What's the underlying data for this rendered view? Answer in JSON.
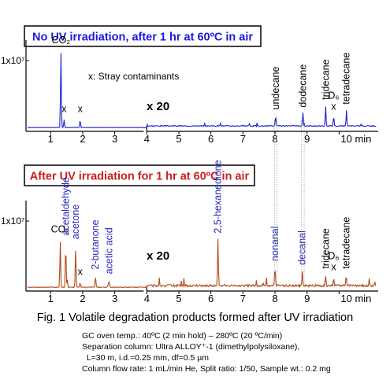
{
  "chart_data": [
    {
      "type": "line",
      "title": "No UV irradiation, after 1 hr at 60ºC in air",
      "title_color": "#1a1adb",
      "line_color": "#1f1fd0",
      "y_tick_label": "1x10⁷",
      "x_ticks": [
        1,
        2,
        3,
        4,
        5,
        6,
        7,
        8,
        9,
        10
      ],
      "x_unit": "min",
      "x_range": [
        0.6,
        10.9
      ],
      "magnification": {
        "label": "x 20",
        "start": 4.0
      },
      "note": "x: Stray contaminants",
      "baseline": 0.03,
      "noise_amplitude": 0.012,
      "peaks": [
        {
          "x": 1.32,
          "y": 1.0,
          "w": 0.012,
          "label": "CO₂",
          "label_color": "#000000",
          "rotate": false
        },
        {
          "x": 1.42,
          "y": 0.1,
          "w": 0.012,
          "label": "x",
          "label_color": "#000000",
          "rotate": false
        },
        {
          "x": 1.92,
          "y": 0.1,
          "w": 0.012,
          "label": "x",
          "label_color": "#000000",
          "rotate": false
        },
        {
          "x": 6.3,
          "y": 0.04,
          "w": 0.012,
          "label": "",
          "rotate": false
        },
        {
          "x": 7.2,
          "y": 0.03,
          "w": 0.012,
          "label": "",
          "rotate": false
        },
        {
          "x": 8.02,
          "y": 0.13,
          "w": 0.012,
          "label": "undecane",
          "label_color": "#000000",
          "rotate": true
        },
        {
          "x": 8.87,
          "y": 0.16,
          "w": 0.012,
          "label": "dodecane",
          "label_color": "#000000",
          "rotate": true
        },
        {
          "x": 9.58,
          "y": 0.26,
          "w": 0.012,
          "label": "tridecane",
          "label_color": "#000000",
          "rotate": true
        },
        {
          "x": 9.83,
          "y": 0.13,
          "w": 0.012,
          "label": "D₆",
          "label_color": "#000000",
          "rotate": false,
          "sub": "x"
        },
        {
          "x": 10.23,
          "y": 0.2,
          "w": 0.012,
          "label": "tetradecane",
          "label_color": "#000000",
          "rotate": true
        }
      ]
    },
    {
      "type": "line",
      "title": "After UV irradiation for 1 hr at 60ºC in air",
      "title_color": "#c81e1e",
      "line_color": "#b24a1a",
      "y_tick_label": "1x10⁷",
      "x_ticks": [
        1,
        2,
        3,
        4,
        5,
        6,
        7,
        8,
        9,
        10
      ],
      "x_unit": "min",
      "x_range": [
        0.6,
        10.9
      ],
      "magnification": {
        "label": "x 20",
        "start": 4.0
      },
      "baseline": 0.03,
      "noise_amplitude": 0.03,
      "peaks": [
        {
          "x": 1.3,
          "y": 0.62,
          "w": 0.012,
          "label": "CO₂",
          "label_color": "#000000",
          "rotate": false
        },
        {
          "x": 1.47,
          "y": 0.58,
          "w": 0.012,
          "label": "acetaldehyde",
          "label_color": "#2a2ab8",
          "rotate": true
        },
        {
          "x": 1.52,
          "y": 0.1,
          "w": 0.012,
          "label": "",
          "rotate": false
        },
        {
          "x": 1.78,
          "y": 0.53,
          "w": 0.012,
          "label": "acetone",
          "label_color": "#2a2ab8",
          "rotate": true
        },
        {
          "x": 1.92,
          "y": 0.06,
          "w": 0.012,
          "label": "x",
          "label_color": "#000000",
          "rotate": false
        },
        {
          "x": 2.4,
          "y": 0.13,
          "w": 0.014,
          "label": "2-butanone",
          "label_color": "#2a2ab8",
          "rotate": true
        },
        {
          "x": 2.82,
          "y": 0.07,
          "w": 0.02,
          "label": "acetic acid",
          "label_color": "#2a2ab8",
          "rotate": true
        },
        {
          "x": 6.22,
          "y": 0.61,
          "w": 0.012,
          "label": "2,5-hexanedione",
          "label_color": "#2a2ab8",
          "rotate": true
        },
        {
          "x": 8.0,
          "y": 0.24,
          "w": 0.012,
          "label": "nonanal",
          "label_color": "#2a2ab8",
          "rotate": true
        },
        {
          "x": 8.85,
          "y": 0.19,
          "w": 0.012,
          "label": "decanal",
          "label_color": "#2a2ab8",
          "rotate": true
        },
        {
          "x": 9.58,
          "y": 0.14,
          "w": 0.012,
          "label": "tridecane",
          "label_color": "#000000",
          "rotate": true
        },
        {
          "x": 9.83,
          "y": 0.12,
          "w": 0.012,
          "label": "D₆",
          "label_color": "#000000",
          "rotate": false,
          "sub": "x"
        },
        {
          "x": 10.22,
          "y": 0.14,
          "w": 0.012,
          "label": "tetradecane",
          "label_color": "#000000",
          "rotate": true
        }
      ]
    }
  ],
  "caption": "Fig. 1 Volatile degradation products formed after UV irradiation",
  "conditions": [
    "GC oven temp.: 40ºC (2 min hold) – 280ºC (20 ºC/min)",
    "Separation column: Ultra ALLOY⁺-1 (dimethylpolysiloxane),",
    "  L=30 m, i.d.=0.25 mm, df=0.5 µm",
    "Column flow rate: 1 mL/min He, Split ratio: 1/50, Sample wt.: 0.2 mg"
  ]
}
